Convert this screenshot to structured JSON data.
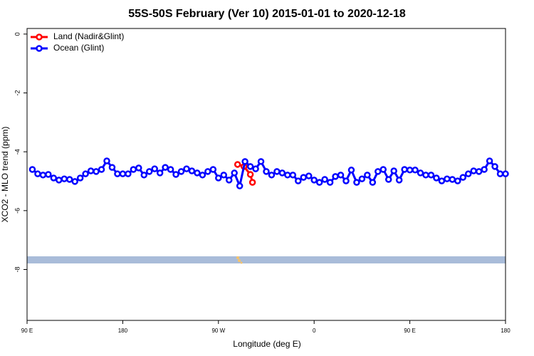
{
  "chart_data": {
    "type": "line",
    "title": "55S-50S February (Ver 10)   2015-01-01 to 2020-12-18",
    "x_label": "Longitude (deg E)",
    "y_label": "XCO2 - MLO trend (ppm)",
    "xlim": [
      90,
      540
    ],
    "ylim": [
      -9.73,
      0.19
    ],
    "xticks": [
      {
        "value": 90,
        "label": "90 E"
      },
      180,
      {
        "value": 270,
        "label": "90 W"
      },
      {
        "value": 360,
        "label": "0"
      },
      {
        "value": 450,
        "label": "90 E"
      },
      {
        "value": 540,
        "label": "180"
      }
    ],
    "yticks": [
      0,
      -2,
      -4,
      -6,
      -8
    ],
    "legend": "top-left",
    "series": [
      {
        "name": "Land (Nadir&Glint)",
        "color": "#ff0000",
        "x": [
          288,
          294,
          300,
          302
        ],
        "values": [
          -4.43,
          -4.5,
          -4.77,
          -5.04
        ]
      },
      {
        "name": "Ocean (Glint)",
        "color": "#0000ff",
        "x": [
          95,
          100,
          105,
          110,
          115,
          120,
          125,
          130,
          135,
          140,
          145,
          150,
          155,
          160,
          165,
          170,
          175,
          180,
          185,
          190,
          195,
          200,
          205,
          210,
          215,
          220,
          225,
          230,
          235,
          240,
          245,
          250,
          255,
          260,
          265,
          270,
          275,
          280,
          285,
          290,
          295,
          300,
          305,
          310,
          315,
          320,
          325,
          330,
          335,
          340,
          345,
          350,
          355,
          360,
          365,
          370,
          375,
          380,
          385,
          390,
          395,
          400,
          405,
          410,
          415,
          420,
          425,
          430,
          435,
          440,
          445,
          450,
          455,
          460,
          465,
          470,
          475,
          480,
          485,
          490,
          495,
          500,
          505,
          510,
          515,
          520,
          525,
          530,
          535,
          540
        ],
        "values": [
          -4.6,
          -4.75,
          -4.79,
          -4.77,
          -4.89,
          -4.96,
          -4.92,
          -4.94,
          -5.01,
          -4.89,
          -4.75,
          -4.65,
          -4.67,
          -4.6,
          -4.31,
          -4.53,
          -4.75,
          -4.75,
          -4.75,
          -4.6,
          -4.55,
          -4.79,
          -4.67,
          -4.58,
          -4.72,
          -4.53,
          -4.6,
          -4.77,
          -4.67,
          -4.58,
          -4.65,
          -4.72,
          -4.79,
          -4.67,
          -4.6,
          -4.89,
          -4.79,
          -4.96,
          -4.72,
          -5.16,
          -4.33,
          -4.5,
          -4.58,
          -4.33,
          -4.67,
          -4.79,
          -4.67,
          -4.72,
          -4.79,
          -4.79,
          -4.99,
          -4.87,
          -4.82,
          -4.96,
          -5.04,
          -4.94,
          -5.04,
          -4.84,
          -4.79,
          -4.99,
          -4.62,
          -5.04,
          -4.92,
          -4.79,
          -5.04,
          -4.67,
          -4.6,
          -4.94,
          -4.65,
          -4.96,
          -4.6,
          -4.62,
          -4.62,
          -4.72,
          -4.79,
          -4.79,
          -4.89,
          -4.99,
          -4.92,
          -4.94,
          -4.99,
          -4.87,
          -4.75,
          -4.65,
          -4.67,
          -4.6,
          -4.31,
          -4.5,
          -4.75,
          -4.75
        ]
      }
    ]
  }
}
